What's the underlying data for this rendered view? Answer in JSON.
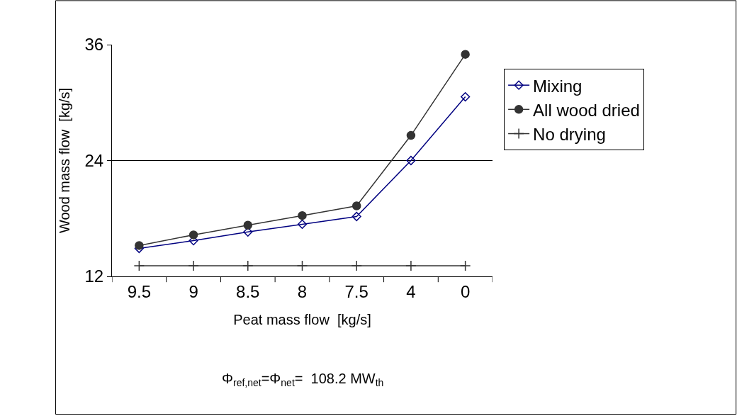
{
  "chart_data": {
    "type": "line",
    "xlabel": "Peat mass flow  [kg/s]",
    "ylabel": "Wood mass flow  [kg/s]",
    "categories": [
      "9.5",
      "9",
      "8.5",
      "8",
      "7.5",
      "4",
      "0"
    ],
    "series": [
      {
        "name": "Mixing",
        "color": "#000080",
        "marker": "diamond",
        "values": [
          14.9,
          15.7,
          16.6,
          17.4,
          18.2,
          24.0,
          30.6
        ]
      },
      {
        "name": "All wood dried",
        "color": "#333333",
        "marker": "circle",
        "values": [
          15.2,
          16.3,
          17.3,
          18.3,
          19.3,
          26.6,
          35.0
        ]
      },
      {
        "name": "No drying",
        "color": "#333333",
        "marker": "cross",
        "values": [
          13.1,
          13.1,
          13.1,
          13.1,
          13.1,
          13.1,
          13.1
        ]
      }
    ],
    "ylim": [
      12,
      36
    ],
    "yticks": [
      12,
      24,
      36
    ],
    "ref_lines": [
      {
        "axis": "y",
        "value": 24,
        "color": "#000000"
      }
    ],
    "annotations": [
      "Φ$_{ref,net}$=Φ$_{net}$=  108.2 MW$_{th}$"
    ],
    "legend": "right",
    "grid": false
  }
}
